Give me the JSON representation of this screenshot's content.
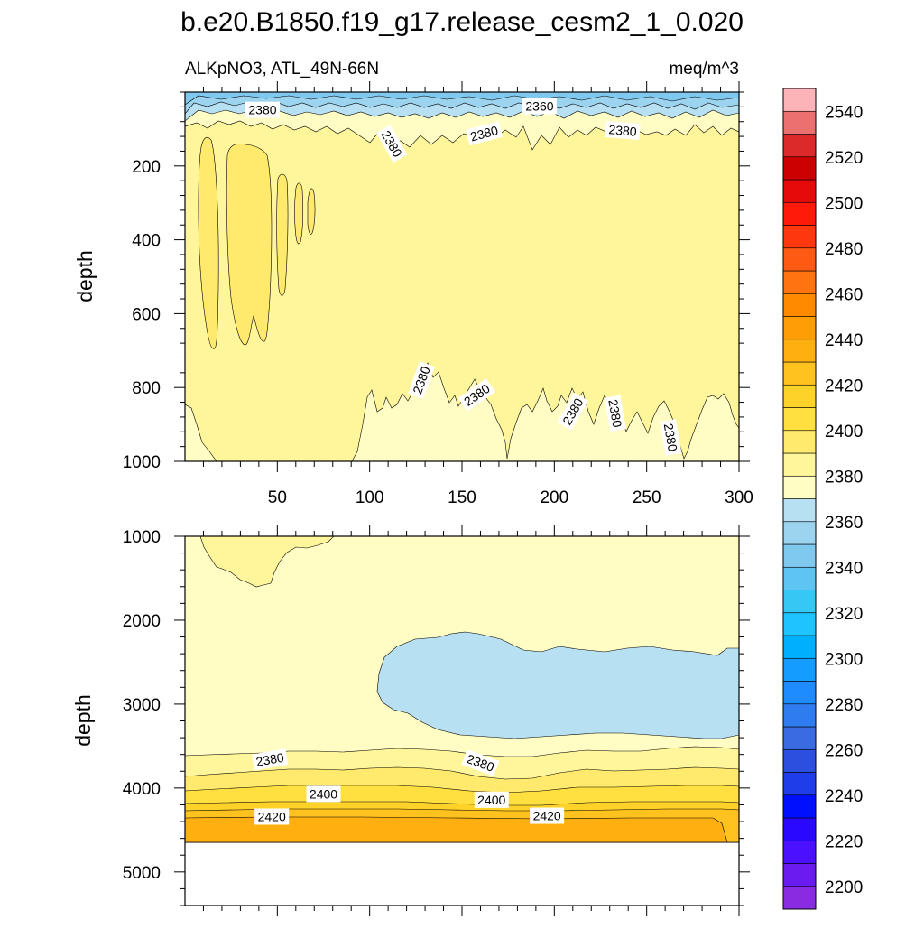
{
  "chart_data": {
    "type": "contour",
    "title": "b.e20.B1850.f19_g17.release_cesm2_1_0.020",
    "variable_label": "ALKpNO3, ATL_49N-66N",
    "units_label": "meq/m^3",
    "ylabel": "depth",
    "x_axis": {
      "range": [
        0,
        300
      ],
      "ticks": [
        50,
        100,
        150,
        200,
        250,
        300
      ],
      "tick_labels": [
        "50",
        "100",
        "150",
        "200",
        "250",
        "300"
      ]
    },
    "upper_panel": {
      "ylim": [
        0,
        1000
      ],
      "y_reversed": true,
      "y_ticks": [
        200,
        400,
        600,
        800,
        1000
      ],
      "y_tick_labels": [
        "200",
        "400",
        "600",
        "800",
        "1000"
      ],
      "contour_labels": [
        {
          "text": "2380",
          "x": 42,
          "y": 48,
          "angle": 0
        },
        {
          "text": "2360",
          "x": 192,
          "y": 38,
          "angle": 0
        },
        {
          "text": "2380",
          "x": 112,
          "y": 140,
          "angle": 60
        },
        {
          "text": "2380",
          "x": 162,
          "y": 112,
          "angle": -15
        },
        {
          "text": "2380",
          "x": 237,
          "y": 104,
          "angle": 5
        },
        {
          "text": "2380",
          "x": 128,
          "y": 780,
          "angle": -70
        },
        {
          "text": "2380",
          "x": 158,
          "y": 820,
          "angle": -35
        },
        {
          "text": "2380",
          "x": 210,
          "y": 865,
          "angle": -60
        },
        {
          "text": "2380",
          "x": 233,
          "y": 870,
          "angle": 80
        },
        {
          "text": "2380",
          "x": 263,
          "y": 935,
          "angle": 80
        }
      ]
    },
    "lower_panel": {
      "ylim": [
        1000,
        5400
      ],
      "y_reversed": true,
      "y_ticks": [
        1000,
        2000,
        3000,
        4000,
        5000
      ],
      "y_tick_labels": [
        "1000",
        "2000",
        "3000",
        "4000",
        "5000"
      ],
      "data_bottom": 4620,
      "contour_labels": [
        {
          "text": "2380",
          "x": 46,
          "y": 3660,
          "angle": -10
        },
        {
          "text": "2380",
          "x": 160,
          "y": 3700,
          "angle": 20
        },
        {
          "text": "2400",
          "x": 75,
          "y": 4070,
          "angle": 0
        },
        {
          "text": "2400",
          "x": 166,
          "y": 4140,
          "angle": 0
        },
        {
          "text": "2420",
          "x": 47,
          "y": 4340,
          "angle": 0
        },
        {
          "text": "2420",
          "x": 196,
          "y": 4330,
          "angle": 0
        }
      ]
    },
    "colorbar": {
      "min": 2190,
      "max": 2560,
      "step": 10,
      "labeled_values": [
        2200,
        2220,
        2240,
        2260,
        2280,
        2300,
        2320,
        2340,
        2360,
        2380,
        2400,
        2420,
        2440,
        2460,
        2480,
        2500,
        2520,
        2540
      ],
      "colors": [
        "#8a2be2",
        "#6a1cf0",
        "#4b10ff",
        "#2a08ff",
        "#0010ff",
        "#1f3de8",
        "#2c4fe0",
        "#3a6be0",
        "#2e7cf0",
        "#1e8cff",
        "#149cff",
        "#00b0ff",
        "#1ec3ff",
        "#35c8f5",
        "#5ec4f2",
        "#7fc8ee",
        "#9cd3ef",
        "#b8e0f3",
        "#fffcc4",
        "#fff59a",
        "#ffea6e",
        "#ffe040",
        "#ffd22a",
        "#ffc21e",
        "#ffb010",
        "#ff9d06",
        "#ff8a00",
        "#ff7410",
        "#ff5a14",
        "#ff3810",
        "#ff1a0a",
        "#e60a0a",
        "#cc0000",
        "#dc2a2a",
        "#ec7070",
        "#fcb4b8"
      ]
    }
  }
}
